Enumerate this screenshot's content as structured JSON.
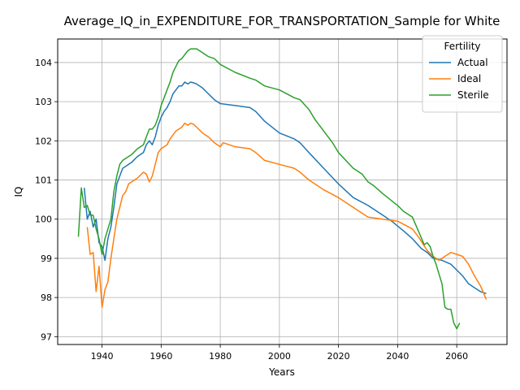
{
  "chart_data": {
    "type": "line",
    "title": "Average_IQ_in_EXPENDITURE_FOR_TRANSPORTATION_Sample for White",
    "xlabel": "Years",
    "ylabel": "IQ",
    "xlim": [
      1925,
      2077
    ],
    "ylim": [
      96.8,
      104.6
    ],
    "x_ticks": [
      1940,
      1960,
      1980,
      2000,
      2020,
      2040,
      2060
    ],
    "y_ticks": [
      97,
      98,
      99,
      100,
      101,
      102,
      103,
      104
    ],
    "grid": true,
    "legend": {
      "title": "Fertility",
      "position": "top-right"
    },
    "series": [
      {
        "name": "Actual",
        "color": "#1f77b4",
        "x": [
          1934,
          1935,
          1936,
          1937,
          1938,
          1939,
          1940,
          1941,
          1942,
          1943,
          1944,
          1945,
          1946,
          1947,
          1948,
          1950,
          1952,
          1954,
          1955,
          1956,
          1957,
          1958,
          1959,
          1960,
          1961,
          1962,
          1963,
          1964,
          1965,
          1966,
          1967,
          1968,
          1969,
          1970,
          1971,
          1972,
          1974,
          1976,
          1978,
          1980,
          1985,
          1990,
          1992,
          1995,
          2000,
          2005,
          2007,
          2010,
          2015,
          2020,
          2025,
          2030,
          2035,
          2038,
          2042,
          2045,
          2048,
          2050,
          2052,
          2055,
          2058,
          2060,
          2062,
          2064,
          2066,
          2068,
          2070
        ],
        "values": [
          100.8,
          100.0,
          100.2,
          99.8,
          100.0,
          99.4,
          99.3,
          98.95,
          99.5,
          99.8,
          100.3,
          100.9,
          101.1,
          101.3,
          101.35,
          101.45,
          101.6,
          101.7,
          101.9,
          102.0,
          101.9,
          102.1,
          102.4,
          102.6,
          102.75,
          102.85,
          103.0,
          103.2,
          103.3,
          103.4,
          103.4,
          103.5,
          103.45,
          103.5,
          103.48,
          103.45,
          103.35,
          103.2,
          103.05,
          102.95,
          102.9,
          102.85,
          102.75,
          102.5,
          102.2,
          102.05,
          101.95,
          101.7,
          101.3,
          100.9,
          100.55,
          100.35,
          100.1,
          99.95,
          99.7,
          99.5,
          99.25,
          99.15,
          99.0,
          98.95,
          98.85,
          98.7,
          98.55,
          98.35,
          98.25,
          98.15,
          98.1
        ]
      },
      {
        "name": "Ideal",
        "color": "#ff7f0e",
        "x": [
          1935,
          1936,
          1937,
          1938,
          1939,
          1940,
          1941,
          1942,
          1943,
          1944,
          1945,
          1946,
          1947,
          1948,
          1949,
          1950,
          1952,
          1954,
          1955,
          1956,
          1957,
          1958,
          1959,
          1960,
          1961,
          1962,
          1963,
          1964,
          1965,
          1966,
          1967,
          1968,
          1969,
          1970,
          1971,
          1972,
          1974,
          1976,
          1978,
          1980,
          1981,
          1985,
          1990,
          1992,
          1995,
          2000,
          2005,
          2007,
          2010,
          2015,
          2020,
          2025,
          2028,
          2030,
          2035,
          2040,
          2045,
          2047,
          2050,
          2052,
          2054,
          2056,
          2058,
          2060,
          2062,
          2064,
          2066,
          2068,
          2070
        ],
        "values": [
          99.8,
          99.1,
          99.15,
          98.15,
          98.8,
          97.75,
          98.2,
          98.4,
          99.0,
          99.5,
          100.0,
          100.3,
          100.6,
          100.7,
          100.9,
          100.95,
          101.05,
          101.2,
          101.15,
          100.95,
          101.1,
          101.4,
          101.7,
          101.8,
          101.85,
          101.9,
          102.05,
          102.15,
          102.25,
          102.3,
          102.35,
          102.45,
          102.4,
          102.45,
          102.42,
          102.35,
          102.2,
          102.1,
          101.95,
          101.85,
          101.95,
          101.85,
          101.8,
          101.7,
          101.5,
          101.4,
          101.3,
          101.2,
          101.0,
          100.75,
          100.55,
          100.3,
          100.15,
          100.05,
          100.0,
          99.95,
          99.75,
          99.55,
          99.2,
          99.05,
          98.95,
          99.05,
          99.15,
          99.1,
          99.05,
          98.85,
          98.55,
          98.3,
          97.95
        ]
      },
      {
        "name": "Sterile",
        "color": "#2ca02c",
        "x": [
          1932,
          1933,
          1934,
          1935,
          1936,
          1937,
          1938,
          1939,
          1940,
          1941,
          1942,
          1943,
          1944,
          1945,
          1946,
          1947,
          1948,
          1949,
          1950,
          1952,
          1954,
          1955,
          1956,
          1957,
          1958,
          1959,
          1960,
          1961,
          1962,
          1963,
          1964,
          1965,
          1966,
          1967,
          1968,
          1969,
          1970,
          1971,
          1972,
          1974,
          1976,
          1978,
          1980,
          1985,
          1990,
          1992,
          1995,
          2000,
          2005,
          2007,
          2010,
          2012,
          2015,
          2018,
          2020,
          2025,
          2028,
          2030,
          2032,
          2035,
          2040,
          2042,
          2045,
          2047,
          2049,
          2050,
          2051,
          2052,
          2053,
          2054,
          2055,
          2056,
          2057,
          2058,
          2059,
          2060,
          2061
        ],
        "values": [
          99.55,
          100.8,
          100.3,
          100.35,
          100.1,
          100.1,
          99.75,
          99.5,
          99.1,
          99.5,
          99.75,
          100.0,
          100.7,
          101.1,
          101.4,
          101.5,
          101.55,
          101.6,
          101.65,
          101.8,
          101.9,
          102.1,
          102.3,
          102.3,
          102.4,
          102.6,
          102.9,
          103.1,
          103.3,
          103.5,
          103.75,
          103.9,
          104.05,
          104.1,
          104.2,
          104.3,
          104.35,
          104.35,
          104.35,
          104.25,
          104.15,
          104.1,
          103.95,
          103.75,
          103.6,
          103.55,
          103.4,
          103.3,
          103.1,
          103.05,
          102.8,
          102.55,
          102.25,
          101.95,
          101.7,
          101.3,
          101.15,
          100.95,
          100.85,
          100.65,
          100.35,
          100.2,
          100.05,
          99.7,
          99.35,
          99.4,
          99.3,
          99.05,
          98.85,
          98.6,
          98.35,
          97.75,
          97.7,
          97.7,
          97.35,
          97.2,
          97.35
        ]
      }
    ]
  }
}
